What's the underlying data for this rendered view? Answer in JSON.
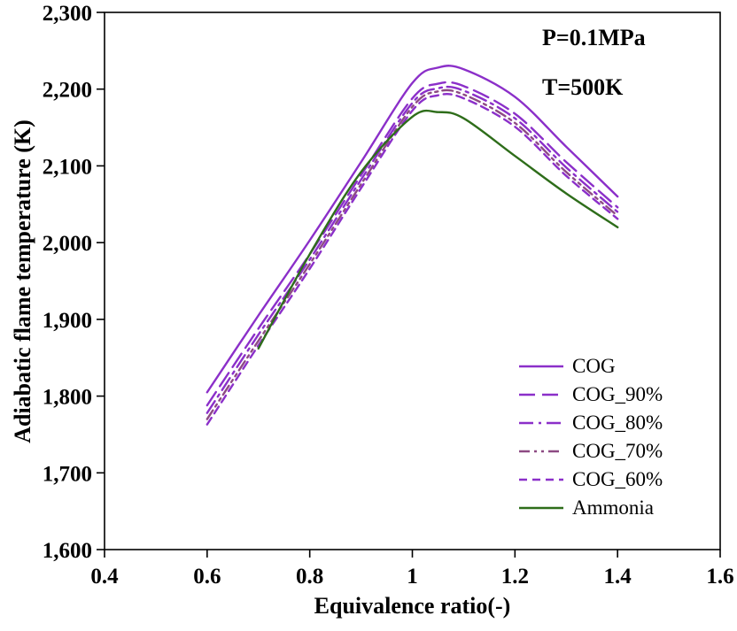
{
  "chart_data": {
    "type": "line",
    "title": "",
    "xlabel": "Equivalence ratio(-)",
    "ylabel": "Adiabatic flame temperature (K)",
    "xlim": [
      0.4,
      1.6
    ],
    "ylim": [
      1600,
      2300
    ],
    "grid": false,
    "legend_position": "inside-bottom-right",
    "x_ticks": {
      "values": [
        0.4,
        0.6,
        0.8,
        1.0,
        1.2,
        1.4,
        1.6
      ],
      "labels": [
        "0.4",
        "0.6",
        "0.8",
        "1",
        "1.2",
        "1.4",
        "1.6"
      ]
    },
    "y_ticks": {
      "values": [
        1600,
        1700,
        1800,
        1900,
        2000,
        2100,
        2200,
        2300
      ],
      "labels": [
        "1,600",
        "1,700",
        "1,800",
        "1,900",
        "2,000",
        "2,100",
        "2,200",
        "2,300"
      ]
    },
    "annotations": [
      {
        "text": "P=0.1MPa"
      },
      {
        "text": "T=500K"
      }
    ],
    "series": [
      {
        "name": "COG",
        "color": "#8b2fc9",
        "dash": "solid",
        "x": [
          0.6,
          0.7,
          0.8,
          0.9,
          1.0,
          1.05,
          1.1,
          1.2,
          1.3,
          1.4
        ],
        "y": [
          1805,
          1905,
          2003,
          2105,
          2208,
          2228,
          2226,
          2190,
          2125,
          2060
        ]
      },
      {
        "name": "COG_90%",
        "color": "#8b2fc9",
        "dash": "long-dash",
        "x": [
          0.6,
          0.7,
          0.8,
          0.9,
          1.0,
          1.05,
          1.1,
          1.2,
          1.3,
          1.4
        ],
        "y": [
          1788,
          1888,
          1985,
          2088,
          2188,
          2207,
          2204,
          2168,
          2105,
          2046
        ]
      },
      {
        "name": "COG_80%",
        "color": "#8b2fc9",
        "dash": "dash-dot",
        "x": [
          0.6,
          0.7,
          0.8,
          0.9,
          1.0,
          1.05,
          1.1,
          1.2,
          1.3,
          1.4
        ],
        "y": [
          1778,
          1880,
          1978,
          2082,
          2182,
          2201,
          2198,
          2162,
          2098,
          2040
        ]
      },
      {
        "name": "COG_70%",
        "color": "#8d4a83",
        "dash": "dash-dot-dot",
        "x": [
          0.6,
          0.7,
          0.8,
          0.9,
          1.0,
          1.05,
          1.1,
          1.2,
          1.3,
          1.4
        ],
        "y": [
          1770,
          1872,
          1972,
          2076,
          2177,
          2197,
          2193,
          2156,
          2092,
          2035
        ]
      },
      {
        "name": "COG_60%",
        "color": "#8b2fc9",
        "dash": "short-dash",
        "x": [
          0.6,
          0.7,
          0.8,
          0.9,
          1.0,
          1.05,
          1.1,
          1.2,
          1.3,
          1.4
        ],
        "y": [
          1763,
          1866,
          1966,
          2071,
          2172,
          2192,
          2188,
          2151,
          2087,
          2031
        ]
      },
      {
        "name": "Ammonia",
        "color": "#2e6d1a",
        "dash": "solid",
        "x": [
          0.7,
          0.8,
          0.9,
          1.0,
          1.05,
          1.1,
          1.2,
          1.3,
          1.4
        ],
        "y": [
          1862,
          1985,
          2092,
          2164,
          2170,
          2162,
          2113,
          2064,
          2020
        ]
      }
    ]
  }
}
